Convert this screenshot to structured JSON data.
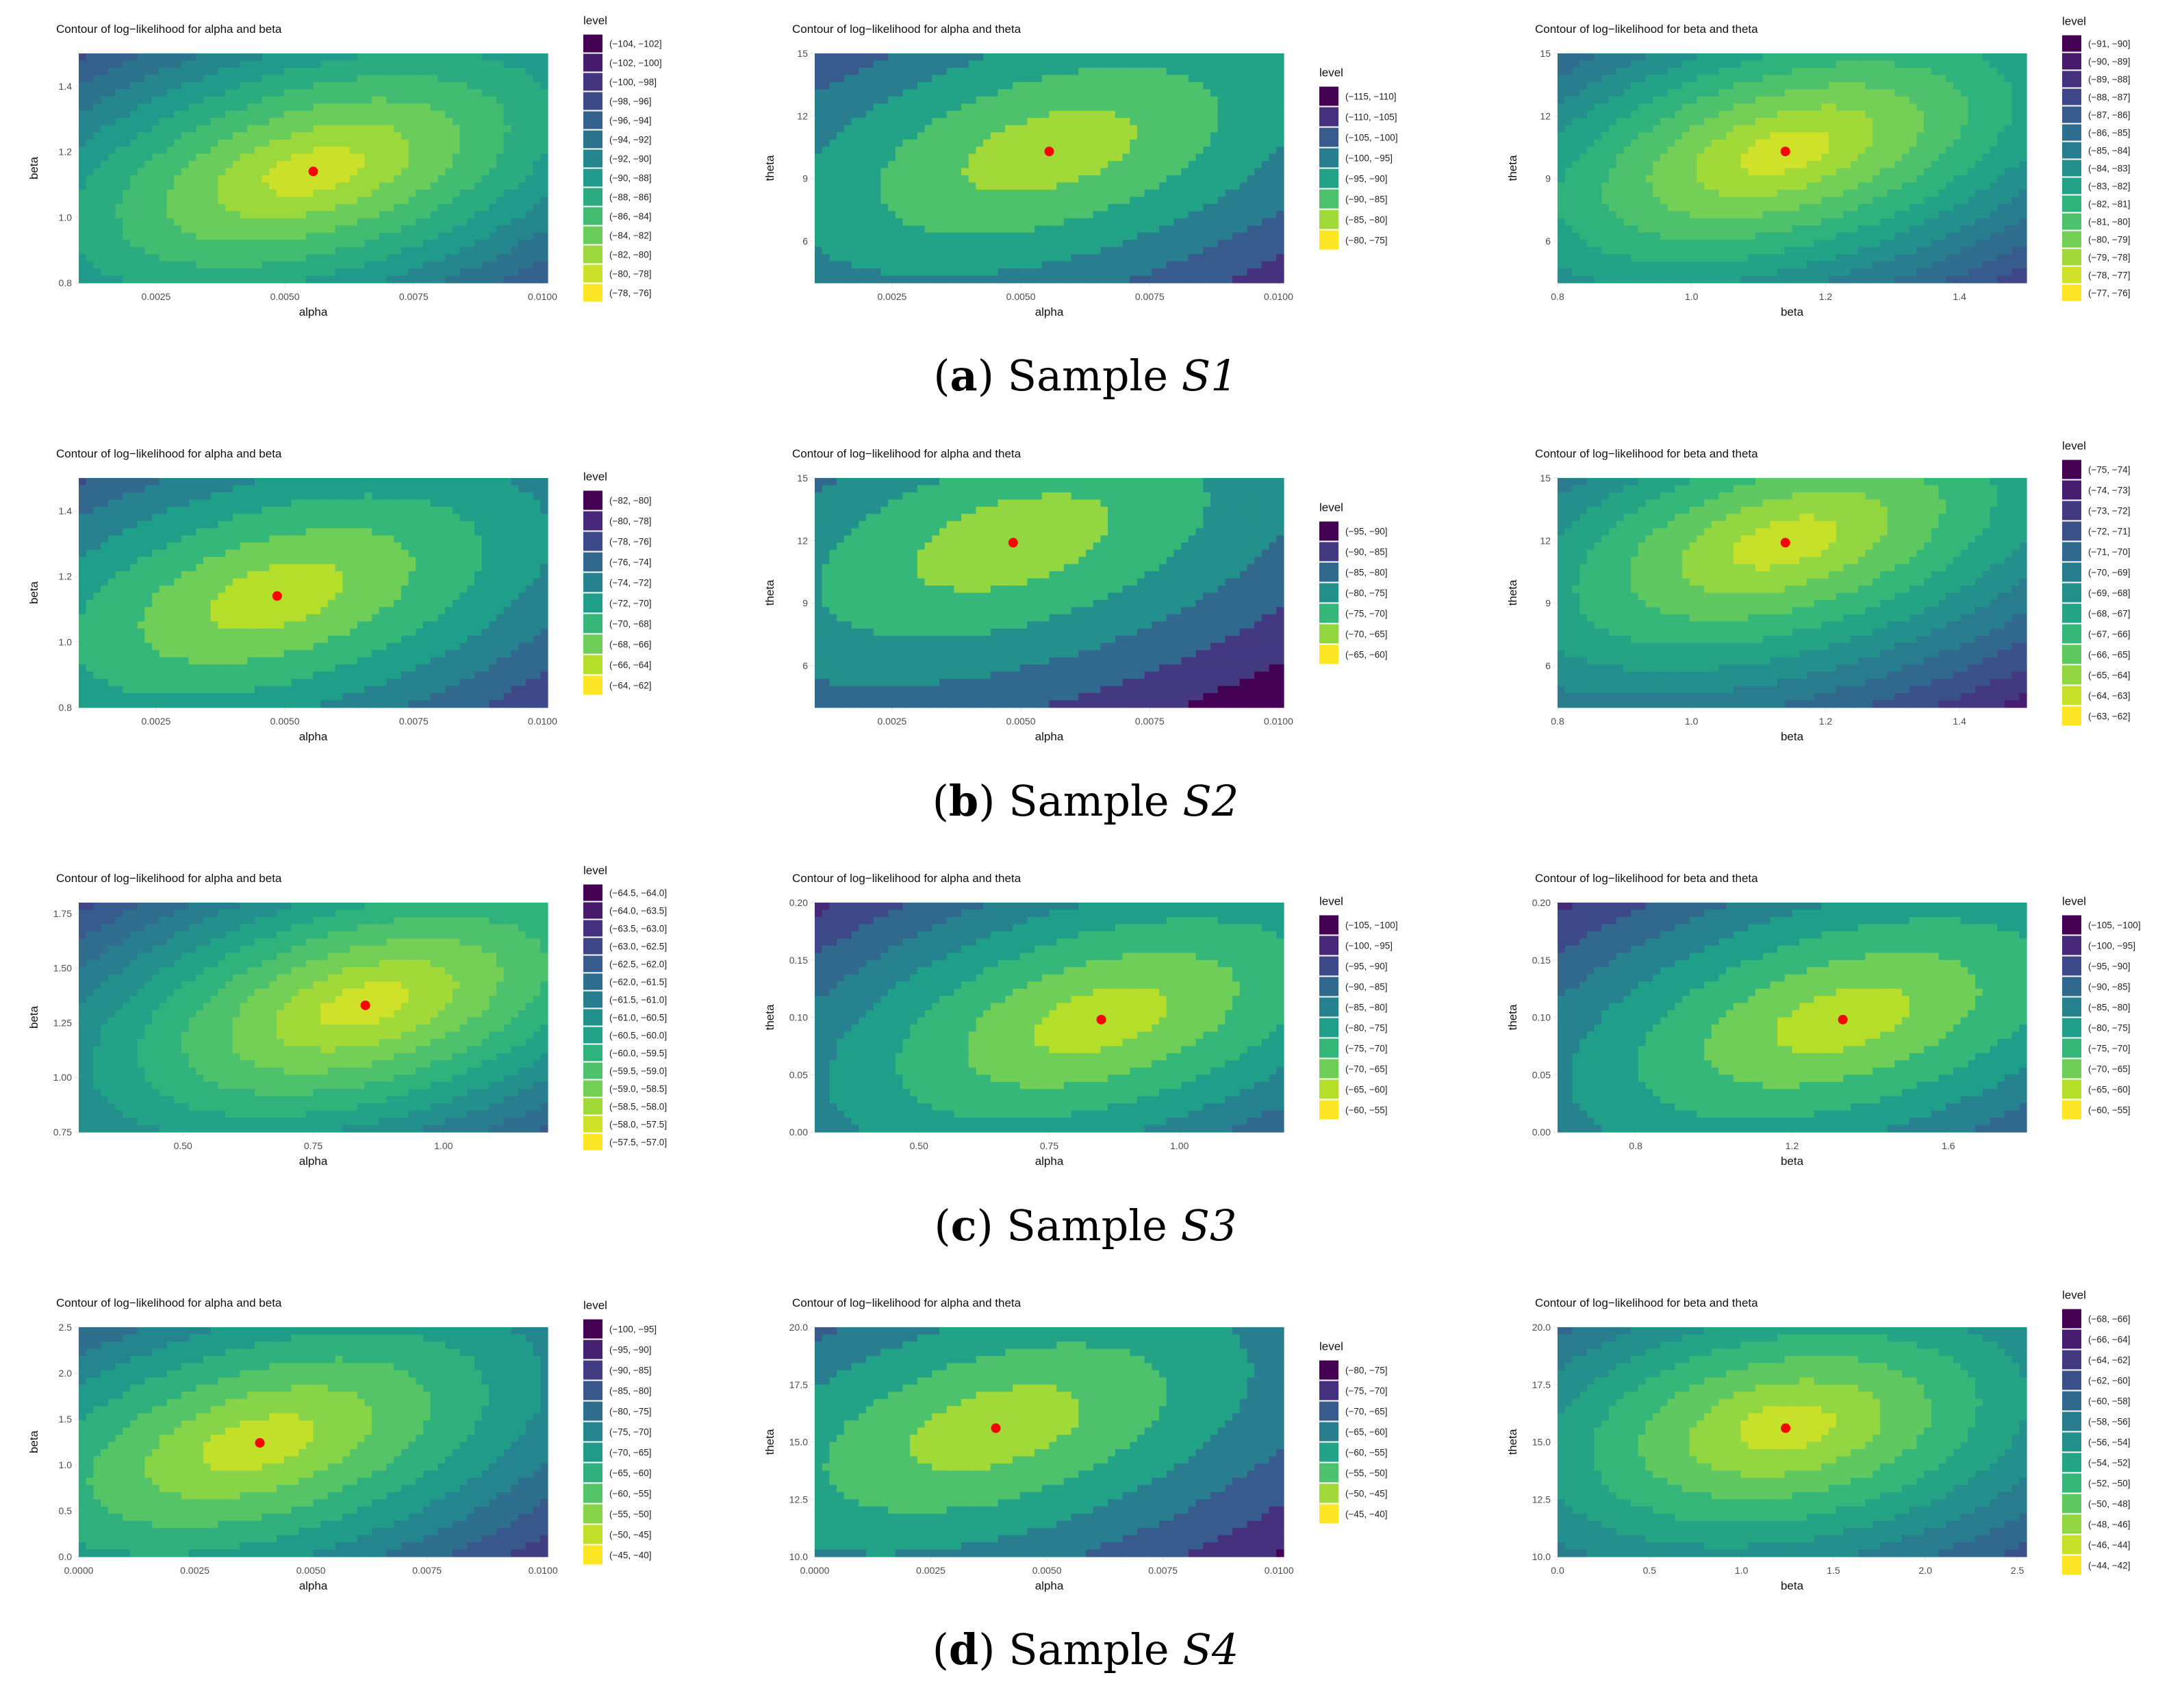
{
  "figure": {
    "rows": [
      {
        "caption": {
          "letter": "a",
          "text": "Sample",
          "sample": "S1"
        },
        "panels": [
          {
            "title": "Contour of log−likelihood for alpha and beta",
            "xlabel": "alpha",
            "ylabel": "beta",
            "xlim": [
              0.001,
              0.0101
            ],
            "ylim": [
              0.8,
              1.5
            ],
            "xticks": [
              0.0025,
              0.005,
              0.0075,
              0.01
            ],
            "xtick_labels": [
              "0.0025",
              "0.0050",
              "0.0075",
              "0.0100"
            ],
            "yticks": [
              0.8,
              1.0,
              1.2,
              1.4
            ],
            "ytick_labels": [
              "0.8",
              "1.0",
              "1.2",
              "1.4"
            ],
            "mle": [
              0.00555,
              1.14
            ],
            "legend_title": "level",
            "levels": [
              "(−104, −102]",
              "(−102, −100]",
              "(−100, −98]",
              "(−98, −96]",
              "(−96, −94]",
              "(−94, −92]",
              "(−92, −90]",
              "(−90, −88]",
              "(−88, −86]",
              "(−86, −84]",
              "(−84, −82]",
              "(−82, −80]",
              "(−80, −78]",
              "(−78, −76]"
            ]
          },
          {
            "title": "Contour of log−likelihood for alpha and theta",
            "xlabel": "alpha",
            "ylabel": "theta",
            "xlim": [
              0.001,
              0.0101
            ],
            "ylim": [
              4,
              15
            ],
            "xticks": [
              0.0025,
              0.005,
              0.0075,
              0.01
            ],
            "xtick_labels": [
              "0.0025",
              "0.0050",
              "0.0075",
              "0.0100"
            ],
            "yticks": [
              6,
              9,
              12,
              15
            ],
            "ytick_labels": [
              "6",
              "9",
              "12",
              "15"
            ],
            "mle": [
              0.00555,
              10.3
            ],
            "legend_title": "level",
            "levels": [
              "(−115, −110]",
              "(−110, −105]",
              "(−105, −100]",
              "(−100, −95]",
              "(−95, −90]",
              "(−90, −85]",
              "(−85, −80]",
              "(−80, −75]"
            ]
          },
          {
            "title": "Contour of log−likelihood for beta and theta",
            "xlabel": "beta",
            "ylabel": "theta",
            "xlim": [
              0.8,
              1.5
            ],
            "ylim": [
              4,
              15
            ],
            "xticks": [
              0.8,
              1.0,
              1.2,
              1.4
            ],
            "xtick_labels": [
              "0.8",
              "1.0",
              "1.2",
              "1.4"
            ],
            "yticks": [
              6,
              9,
              12,
              15
            ],
            "ytick_labels": [
              "6",
              "9",
              "12",
              "15"
            ],
            "mle": [
              1.14,
              10.3
            ],
            "legend_title": "level",
            "levels": [
              "(−91, −90]",
              "(−90, −89]",
              "(−89, −88]",
              "(−88, −87]",
              "(−87, −86]",
              "(−86, −85]",
              "(−85, −84]",
              "(−84, −83]",
              "(−83, −82]",
              "(−82, −81]",
              "(−81, −80]",
              "(−80, −79]",
              "(−79, −78]",
              "(−78, −77]",
              "(−77, −76]"
            ]
          }
        ]
      },
      {
        "caption": {
          "letter": "b",
          "text": "Sample",
          "sample": "S2"
        },
        "panels": [
          {
            "title": "Contour of log−likelihood for alpha and beta",
            "xlabel": "alpha",
            "ylabel": "beta",
            "xlim": [
              0.001,
              0.0101
            ],
            "ylim": [
              0.8,
              1.5
            ],
            "xticks": [
              0.0025,
              0.005,
              0.0075,
              0.01
            ],
            "xtick_labels": [
              "0.0025",
              "0.0050",
              "0.0075",
              "0.0100"
            ],
            "yticks": [
              0.8,
              1.0,
              1.2,
              1.4
            ],
            "ytick_labels": [
              "0.8",
              "1.0",
              "1.2",
              "1.4"
            ],
            "mle": [
              0.00485,
              1.14
            ],
            "legend_title": "level",
            "levels": [
              "(−82, −80]",
              "(−80, −78]",
              "(−78, −76]",
              "(−76, −74]",
              "(−74, −72]",
              "(−72, −70]",
              "(−70, −68]",
              "(−68, −66]",
              "(−66, −64]",
              "(−64, −62]"
            ]
          },
          {
            "title": "Contour of log−likelihood for alpha and theta",
            "xlabel": "alpha",
            "ylabel": "theta",
            "xlim": [
              0.001,
              0.0101
            ],
            "ylim": [
              4,
              15
            ],
            "xticks": [
              0.0025,
              0.005,
              0.0075,
              0.01
            ],
            "xtick_labels": [
              "0.0025",
              "0.0050",
              "0.0075",
              "0.0100"
            ],
            "yticks": [
              6,
              9,
              12,
              15
            ],
            "ytick_labels": [
              "6",
              "9",
              "12",
              "15"
            ],
            "mle": [
              0.00485,
              11.9
            ],
            "legend_title": "level",
            "levels": [
              "(−95, −90]",
              "(−90, −85]",
              "(−85, −80]",
              "(−80, −75]",
              "(−75, −70]",
              "(−70, −65]",
              "(−65, −60]"
            ]
          },
          {
            "title": "Contour of log−likelihood for beta and theta",
            "xlabel": "beta",
            "ylabel": "theta",
            "xlim": [
              0.8,
              1.5
            ],
            "ylim": [
              4,
              15
            ],
            "xticks": [
              0.8,
              1.0,
              1.2,
              1.4
            ],
            "xtick_labels": [
              "0.8",
              "1.0",
              "1.2",
              "1.4"
            ],
            "yticks": [
              6,
              9,
              12,
              15
            ],
            "ytick_labels": [
              "6",
              "9",
              "12",
              "15"
            ],
            "mle": [
              1.14,
              11.9
            ],
            "legend_title": "level",
            "levels": [
              "(−75, −74]",
              "(−74, −73]",
              "(−73, −72]",
              "(−72, −71]",
              "(−71, −70]",
              "(−70, −69]",
              "(−69, −68]",
              "(−68, −67]",
              "(−67, −66]",
              "(−66, −65]",
              "(−65, −64]",
              "(−64, −63]",
              "(−63, −62]"
            ]
          }
        ]
      },
      {
        "caption": {
          "letter": "c",
          "text": "Sample",
          "sample": "S3"
        },
        "panels": [
          {
            "title": "Contour of log−likelihood for alpha and beta",
            "xlabel": "alpha",
            "ylabel": "beta",
            "xlim": [
              0.3,
              1.2
            ],
            "ylim": [
              0.75,
              1.8
            ],
            "xticks": [
              0.5,
              0.75,
              1.0
            ],
            "xtick_labels": [
              "0.50",
              "0.75",
              "1.00"
            ],
            "yticks": [
              0.75,
              1.0,
              1.25,
              1.5,
              1.75
            ],
            "ytick_labels": [
              "0.75",
              "1.00",
              "1.25",
              "1.50",
              "1.75"
            ],
            "mle": [
              0.85,
              1.33
            ],
            "legend_title": "level",
            "levels": [
              "(−64.5, −64.0]",
              "(−64.0, −63.5]",
              "(−63.5, −63.0]",
              "(−63.0, −62.5]",
              "(−62.5, −62.0]",
              "(−62.0, −61.5]",
              "(−61.5, −61.0]",
              "(−61.0, −60.5]",
              "(−60.5, −60.0]",
              "(−60.0, −59.5]",
              "(−59.5, −59.0]",
              "(−59.0, −58.5]",
              "(−58.5, −58.0]",
              "(−58.0, −57.5]",
              "(−57.5, −57.0]"
            ]
          },
          {
            "title": "Contour of log−likelihood for alpha and theta",
            "xlabel": "alpha",
            "ylabel": "theta",
            "xlim": [
              0.3,
              1.2
            ],
            "ylim": [
              0.0,
              0.2
            ],
            "xticks": [
              0.5,
              0.75,
              1.0
            ],
            "xtick_labels": [
              "0.50",
              "0.75",
              "1.00"
            ],
            "yticks": [
              0.0,
              0.05,
              0.1,
              0.15,
              0.2
            ],
            "ytick_labels": [
              "0.00",
              "0.05",
              "0.10",
              "0.15",
              "0.20"
            ],
            "mle": [
              0.85,
              0.098
            ],
            "legend_title": "level",
            "levels": [
              "(−105, −100]",
              "(−100, −95]",
              "(−95, −90]",
              "(−90, −85]",
              "(−85, −80]",
              "(−80, −75]",
              "(−75, −70]",
              "(−70, −65]",
              "(−65, −60]",
              "(−60, −55]"
            ]
          },
          {
            "title": "Contour of log−likelihood for beta and theta",
            "xlabel": "beta",
            "ylabel": "theta",
            "xlim": [
              0.6,
              1.8
            ],
            "ylim": [
              0.0,
              0.2
            ],
            "xticks": [
              0.8,
              1.2,
              1.6
            ],
            "xtick_labels": [
              "0.8",
              "1.2",
              "1.6"
            ],
            "yticks": [
              0.0,
              0.05,
              0.1,
              0.15,
              0.2
            ],
            "ytick_labels": [
              "0.00",
              "0.05",
              "0.10",
              "0.15",
              "0.20"
            ],
            "mle": [
              1.33,
              0.098
            ],
            "legend_title": "level",
            "levels": [
              "(−105, −100]",
              "(−100, −95]",
              "(−95, −90]",
              "(−90, −85]",
              "(−85, −80]",
              "(−80, −75]",
              "(−75, −70]",
              "(−70, −65]",
              "(−65, −60]",
              "(−60, −55]"
            ]
          }
        ]
      },
      {
        "caption": {
          "letter": "d",
          "text": "Sample",
          "sample": "S4"
        },
        "panels": [
          {
            "title": "Contour of log−likelihood for alpha and beta",
            "xlabel": "alpha",
            "ylabel": "beta",
            "xlim": [
              0.0,
              0.0101
            ],
            "ylim": [
              0.0,
              2.5
            ],
            "xticks": [
              0.0,
              0.0025,
              0.005,
              0.0075,
              0.01
            ],
            "xtick_labels": [
              "0.0000",
              "0.0025",
              "0.0050",
              "0.0075",
              "0.0100"
            ],
            "yticks": [
              0.0,
              0.5,
              1.0,
              1.5,
              2.0,
              2.5
            ],
            "ytick_labels": [
              "0.0",
              "0.5",
              "1.0",
              "1.5",
              "2.0",
              "2.5"
            ],
            "mle": [
              0.0039,
              1.24
            ],
            "legend_title": "level",
            "levels": [
              "(−100, −95]",
              "(−95, −90]",
              "(−90, −85]",
              "(−85, −80]",
              "(−80, −75]",
              "(−75, −70]",
              "(−70, −65]",
              "(−65, −60]",
              "(−60, −55]",
              "(−55, −50]",
              "(−50, −45]",
              "(−45, −40]"
            ]
          },
          {
            "title": "Contour of log−likelihood for alpha and theta",
            "xlabel": "alpha",
            "ylabel": "theta",
            "xlim": [
              0.0,
              0.0101
            ],
            "ylim": [
              10.0,
              20.0
            ],
            "xticks": [
              0.0,
              0.0025,
              0.005,
              0.0075,
              0.01
            ],
            "xtick_labels": [
              "0.0000",
              "0.0025",
              "0.0050",
              "0.0075",
              "0.0100"
            ],
            "yticks": [
              10.0,
              12.5,
              15.0,
              17.5,
              20.0
            ],
            "ytick_labels": [
              "10.0",
              "12.5",
              "15.0",
              "17.5",
              "20.0"
            ],
            "mle": [
              0.0039,
              15.6
            ],
            "legend_title": "level",
            "levels": [
              "(−80, −75]",
              "(−75, −70]",
              "(−70, −65]",
              "(−65, −60]",
              "(−60, −55]",
              "(−55, −50]",
              "(−50, −45]",
              "(−45, −40]"
            ]
          },
          {
            "title": "Contour of log−likelihood for beta and theta",
            "xlabel": "beta",
            "ylabel": "theta",
            "xlim": [
              0.0,
              2.55
            ],
            "ylim": [
              10.0,
              20.0
            ],
            "xticks": [
              0.0,
              0.5,
              1.0,
              1.5,
              2.0,
              2.5
            ],
            "xtick_labels": [
              "0.0",
              "0.5",
              "1.0",
              "1.5",
              "2.0",
              "2.5"
            ],
            "yticks": [
              10.0,
              12.5,
              15.0,
              17.5,
              20.0
            ],
            "ytick_labels": [
              "10.0",
              "12.5",
              "15.0",
              "17.5",
              "20.0"
            ],
            "mle": [
              1.24,
              15.6
            ],
            "legend_title": "level",
            "levels": [
              "(−68, −66]",
              "(−66, −64]",
              "(−64, −62]",
              "(−62, −60]",
              "(−60, −58]",
              "(−58, −56]",
              "(−56, −54]",
              "(−54, −52]",
              "(−52, −50]",
              "(−50, −48]",
              "(−48, −46]",
              "(−46, −44]",
              "(−44, −42]"
            ]
          }
        ]
      }
    ]
  },
  "chart_data": {
    "type": "contour",
    "figure": "Log-likelihood contour plots for four samples (S1-S4); red point marks the maximum likelihood estimate",
    "colormap": "viridis",
    "mle_point_color": "#ff0000",
    "panel_grid": "3 columns (alpha-beta, alpha-theta, beta-theta) x 4 rows (S1, S2, S3, S4)",
    "mle_estimates": [
      {
        "sample": "S1",
        "alpha": 0.00555,
        "beta": 1.14,
        "theta": 10.3
      },
      {
        "sample": "S2",
        "alpha": 0.00485,
        "beta": 1.14,
        "theta": 11.9
      },
      {
        "sample": "S3",
        "alpha": 0.85,
        "beta": 1.33,
        "theta": 0.098
      },
      {
        "sample": "S4",
        "alpha": 0.0039,
        "beta": 1.24,
        "theta": 15.6
      }
    ]
  }
}
